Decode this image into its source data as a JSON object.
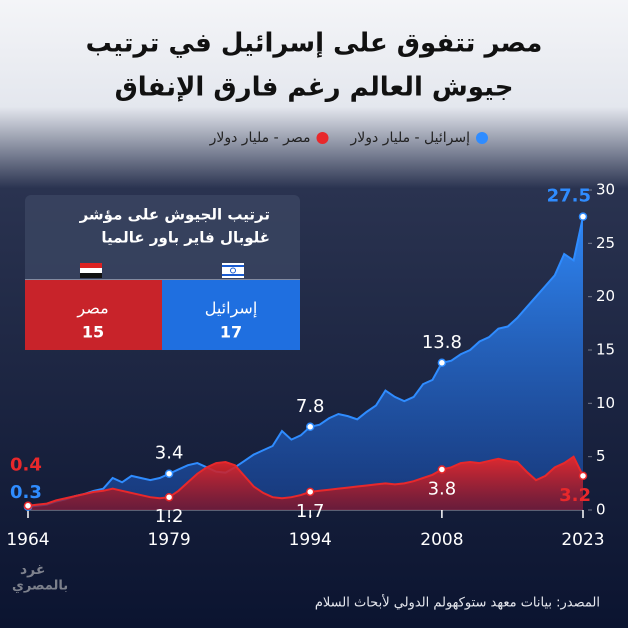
{
  "title_lines": [
    "مصر تتفوق على إسرائيل في ترتيب",
    "جيوش العالم رغم فارق الإنفاق"
  ],
  "chart_data": {
    "type": "area",
    "x": [
      1964,
      1965,
      1966,
      1967,
      1968,
      1969,
      1970,
      1971,
      1972,
      1973,
      1974,
      1975,
      1976,
      1977,
      1978,
      1979,
      1980,
      1981,
      1982,
      1983,
      1984,
      1985,
      1986,
      1987,
      1988,
      1989,
      1990,
      1991,
      1992,
      1993,
      1994,
      1995,
      1996,
      1997,
      1998,
      1999,
      2000,
      2001,
      2002,
      2003,
      2004,
      2005,
      2006,
      2007,
      2008,
      2009,
      2010,
      2011,
      2012,
      2013,
      2014,
      2015,
      2016,
      2017,
      2018,
      2019,
      2020,
      2021,
      2022,
      2023
    ],
    "series": [
      {
        "name": "إسرائيل - مليار دولار",
        "color": "#2f8cff",
        "values": [
          0.3,
          0.4,
          0.5,
          0.8,
          1.0,
          1.3,
          1.5,
          1.8,
          2.0,
          3.0,
          2.6,
          3.2,
          3.0,
          2.8,
          3.0,
          3.4,
          3.8,
          4.2,
          4.4,
          4.0,
          3.6,
          3.5,
          4.0,
          4.6,
          5.2,
          5.6,
          6.0,
          7.4,
          6.6,
          7.0,
          7.8,
          8.0,
          8.6,
          9.0,
          8.8,
          8.5,
          9.2,
          9.8,
          11.2,
          10.6,
          10.2,
          10.6,
          11.8,
          12.2,
          13.8,
          14.0,
          14.6,
          15.0,
          15.8,
          16.2,
          17.0,
          17.2,
          18.0,
          19.0,
          20.0,
          21.0,
          22.0,
          24.0,
          23.4,
          27.5
        ]
      },
      {
        "name": "مصر - مليار دولار",
        "color": "#e8282b",
        "values": [
          0.4,
          0.5,
          0.6,
          0.9,
          1.1,
          1.3,
          1.5,
          1.7,
          1.8,
          2.0,
          1.8,
          1.6,
          1.4,
          1.2,
          1.1,
          1.2,
          1.8,
          2.6,
          3.4,
          4.0,
          4.4,
          4.5,
          4.2,
          3.2,
          2.2,
          1.6,
          1.2,
          1.1,
          1.2,
          1.4,
          1.7,
          1.8,
          1.9,
          2.0,
          2.1,
          2.2,
          2.3,
          2.4,
          2.5,
          2.4,
          2.5,
          2.7,
          3.0,
          3.3,
          3.8,
          4.0,
          4.4,
          4.5,
          4.4,
          4.6,
          4.8,
          4.6,
          4.5,
          3.6,
          2.8,
          3.2,
          4.0,
          4.4,
          5.0,
          3.2
        ]
      }
    ],
    "xlim": [
      1964,
      2023
    ],
    "xticks": [
      1964,
      1979,
      1994,
      2008,
      2023
    ],
    "ylim": [
      0,
      30
    ],
    "yticks": [
      0,
      5,
      10,
      15,
      20,
      25,
      30
    ],
    "grid": false
  },
  "inset": {
    "title_lines": [
      "ترتيب الجيوش على مؤشر",
      "غلوبال فاير باور عالميا"
    ],
    "items": [
      {
        "label": "إسرائيل",
        "value": 17
      },
      {
        "label": "مصر",
        "value": 15
      }
    ]
  },
  "source": "المصدر: بيانات معهد ستوكهولم الدولي لأبحاث السلام",
  "watermark": [
    "غرد",
    "بالمصري"
  ]
}
